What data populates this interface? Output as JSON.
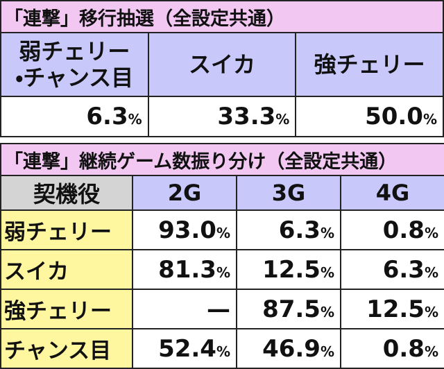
{
  "table1": {
    "title": "「連撃」移行抽選（全設定共通）",
    "headers": [
      [
        "弱チェリー",
        "・チャンス目"
      ],
      [
        "スイカ"
      ],
      [
        "強チェリー"
      ]
    ],
    "values": [
      {
        "num": "6.3",
        "unit": "%"
      },
      {
        "num": "33.3",
        "unit": "%"
      },
      {
        "num": "50.0",
        "unit": "%"
      }
    ]
  },
  "table2": {
    "title": "「連撃」継続ゲーム数振り分け（全設定共通）",
    "columns": [
      "契機役",
      "2G",
      "3G",
      "4G"
    ],
    "rows": [
      {
        "label": "弱チェリー",
        "cells": [
          {
            "num": "93.0",
            "unit": "%"
          },
          {
            "num": "6.3",
            "unit": "%"
          },
          {
            "num": "0.8",
            "unit": "%"
          }
        ]
      },
      {
        "label": "スイカ",
        "cells": [
          {
            "num": "81.3",
            "unit": "%"
          },
          {
            "num": "12.5",
            "unit": "%"
          },
          {
            "num": "6.3",
            "unit": "%"
          }
        ]
      },
      {
        "label": "強チェリー",
        "cells": [
          {
            "num": "—"
          },
          {
            "num": "87.5",
            "unit": "%"
          },
          {
            "num": "12.5",
            "unit": "%"
          }
        ]
      },
      {
        "label": "チャンス目",
        "cells": [
          {
            "num": "52.4",
            "unit": "%"
          },
          {
            "num": "46.9",
            "unit": "%"
          },
          {
            "num": "0.8",
            "unit": "%"
          }
        ]
      }
    ]
  }
}
